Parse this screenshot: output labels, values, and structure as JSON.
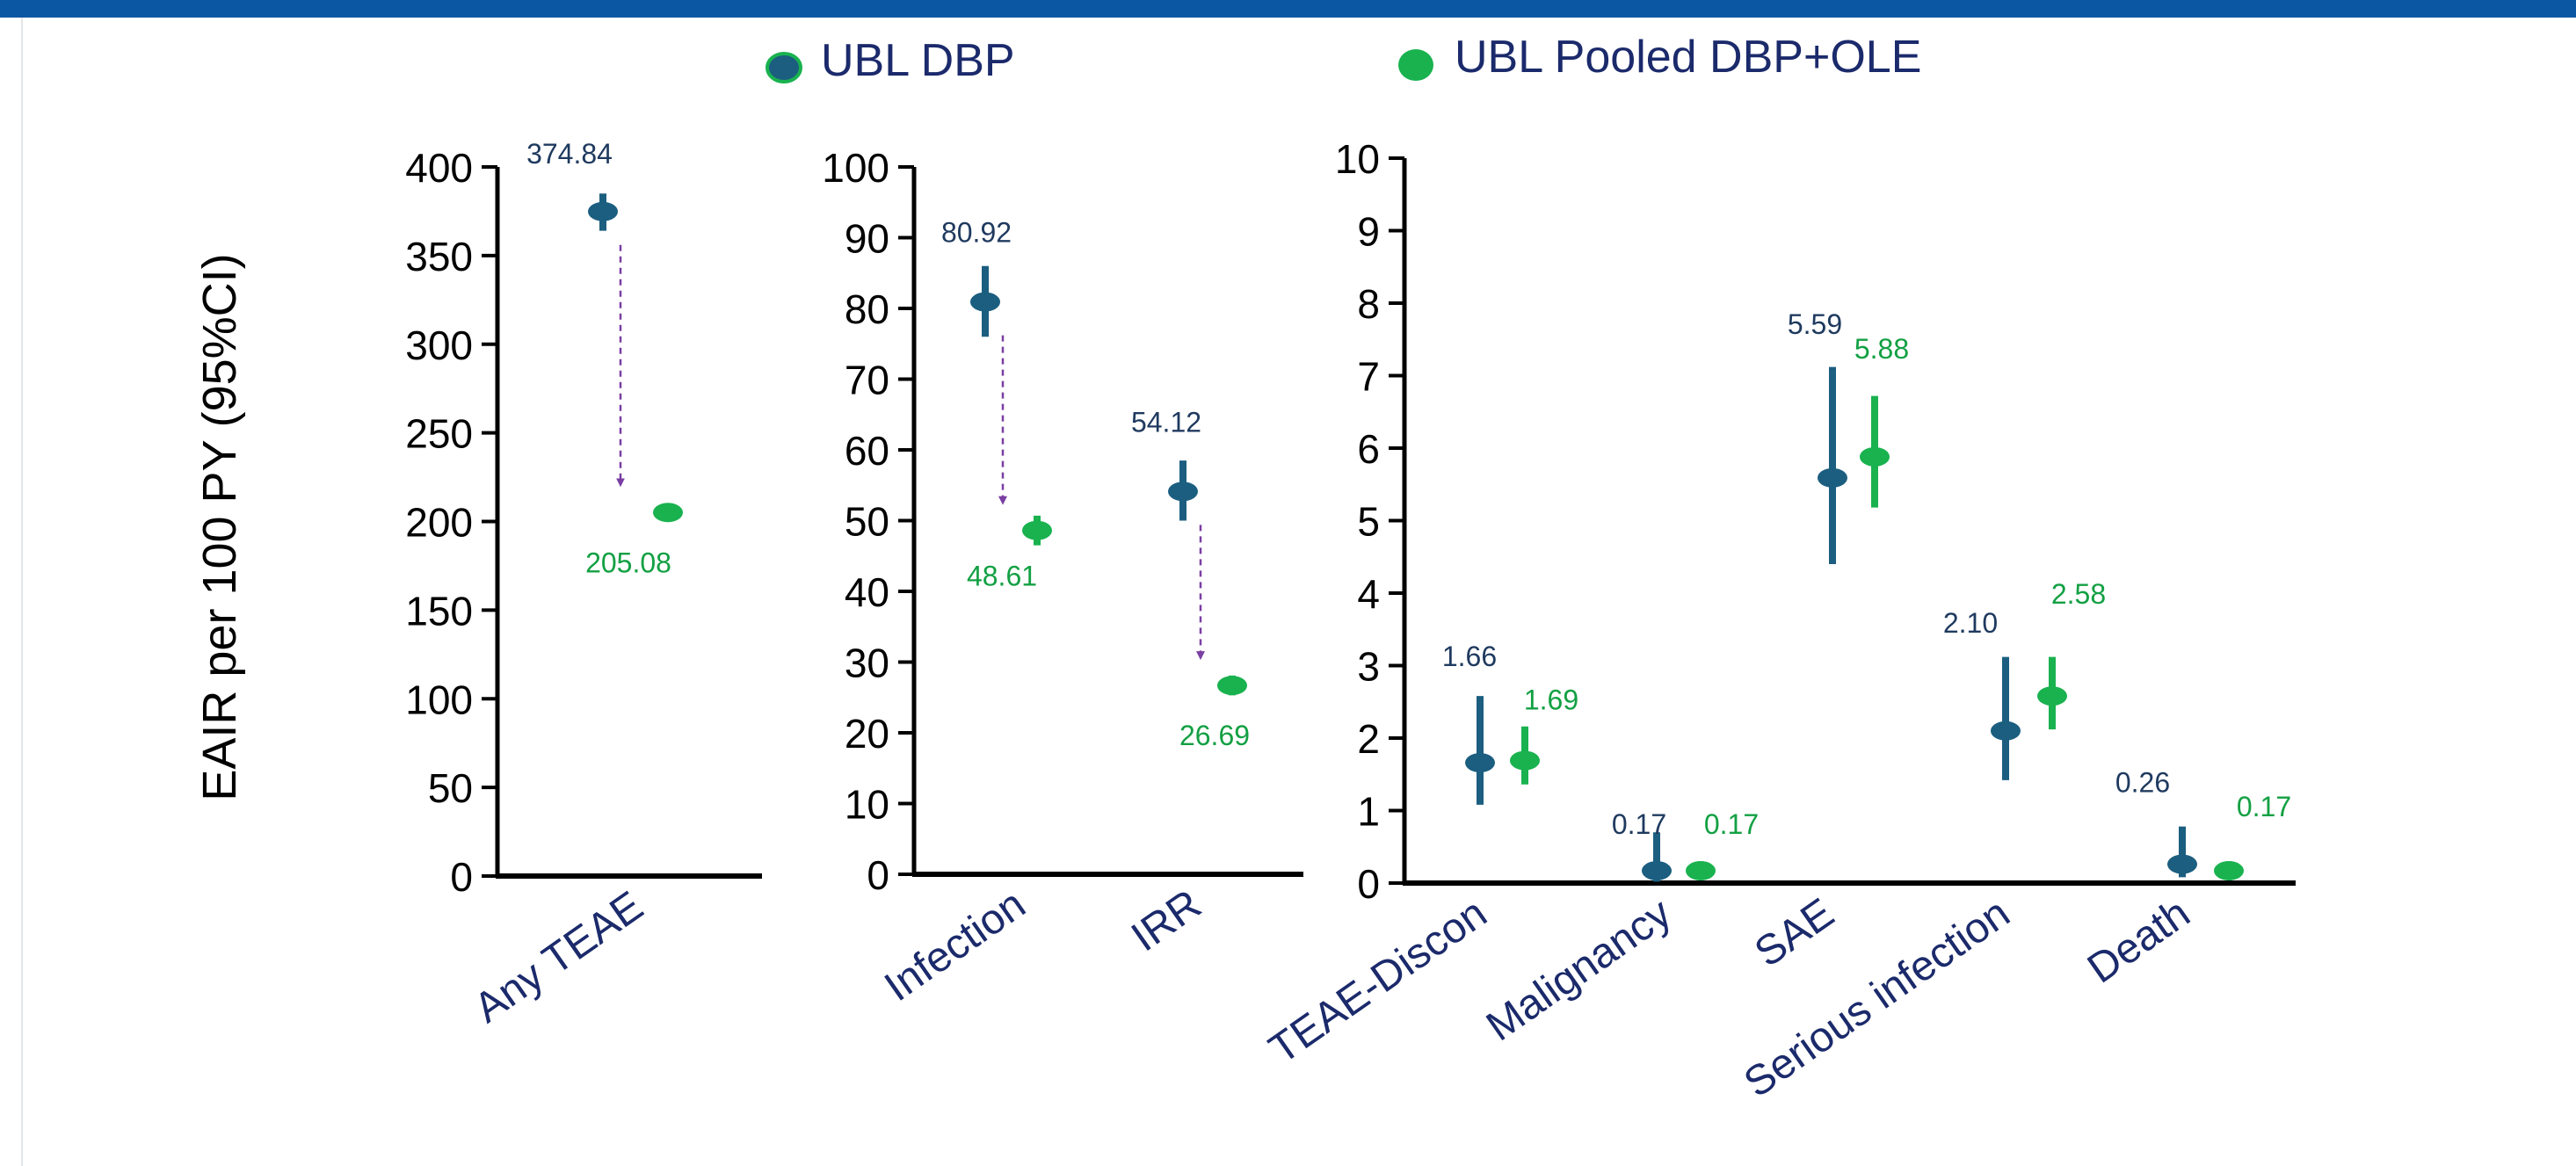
{
  "colors": {
    "top_bar": "#0b57a4",
    "dbp": "#1b5e80",
    "pooled": "#19b24f",
    "pooled_label": "#13a043",
    "dbp_label": "#1f3a5f",
    "category_label": "#1b2a6b",
    "arrow": "#7a3fa3",
    "legend_dbp_ring": "#19b24f",
    "axis": "#000000"
  },
  "legend": {
    "dbp": "UBL DBP",
    "pooled": "UBL Pooled DBP+OLE"
  },
  "ylabel": "EAIR per 100 PY (95%CI)",
  "chart_data": [
    {
      "type": "scatter",
      "ylim": [
        0,
        400
      ],
      "yticks": [
        "0",
        "50",
        "100",
        "150",
        "200",
        "250",
        "300",
        "350",
        "400"
      ],
      "categories": [
        "Any TEAE"
      ],
      "series": [
        {
          "name": "UBL DBP",
          "values": [
            374.84
          ],
          "ci_low": [
            364
          ],
          "ci_high": [
            385
          ],
          "labels": [
            "374.84"
          ]
        },
        {
          "name": "UBL Pooled DBP+OLE",
          "values": [
            205.08
          ],
          "ci_low": [
            205.08
          ],
          "ci_high": [
            205.08
          ],
          "labels": [
            "205.08"
          ]
        }
      ],
      "arrows": [
        true
      ]
    },
    {
      "type": "scatter",
      "ylim": [
        0,
        100
      ],
      "yticks": [
        "0",
        "10",
        "20",
        "30",
        "40",
        "50",
        "60",
        "70",
        "80",
        "90",
        "100"
      ],
      "categories": [
        "Infection",
        "IRR"
      ],
      "series": [
        {
          "name": "UBL DBP",
          "values": [
            80.92,
            54.12
          ],
          "ci_low": [
            76,
            50
          ],
          "ci_high": [
            86,
            58.5
          ],
          "labels": [
            "80.92",
            "54.12"
          ]
        },
        {
          "name": "UBL Pooled DBP+OLE",
          "values": [
            48.61,
            26.69
          ],
          "ci_low": [
            46.5,
            25.3
          ],
          "ci_high": [
            50.7,
            28.1
          ],
          "labels": [
            "48.61",
            "26.69"
          ]
        }
      ],
      "arrows": [
        true,
        true
      ]
    },
    {
      "type": "scatter",
      "ylim": [
        0,
        10
      ],
      "yticks": [
        "0",
        "1",
        "2",
        "3",
        "4",
        "5",
        "6",
        "7",
        "8",
        "9",
        "10"
      ],
      "categories": [
        "TEAE-Discon",
        "Malignancy",
        "SAE",
        "Serious infection",
        "Death"
      ],
      "series": [
        {
          "name": "UBL DBP",
          "values": [
            1.66,
            0.17,
            5.59,
            2.1,
            0.26
          ],
          "ci_low": [
            1.08,
            0.02,
            4.4,
            1.42,
            0.08
          ],
          "ci_high": [
            2.58,
            0.7,
            7.12,
            3.12,
            0.78
          ],
          "labels": [
            "1.66",
            "0.17",
            "5.59",
            "2.10",
            "0.26"
          ]
        },
        {
          "name": "UBL Pooled DBP+OLE",
          "values": [
            1.69,
            0.17,
            5.88,
            2.58,
            0.17
          ],
          "ci_low": [
            1.36,
            0.07,
            5.18,
            2.12,
            0.06
          ],
          "ci_high": [
            2.16,
            0.3,
            6.72,
            3.12,
            0.3
          ],
          "labels": [
            "1.69",
            "0.17",
            "5.88",
            "2.58",
            "0.17"
          ]
        }
      ],
      "arrows": [
        false,
        false,
        false,
        false,
        false
      ]
    }
  ]
}
